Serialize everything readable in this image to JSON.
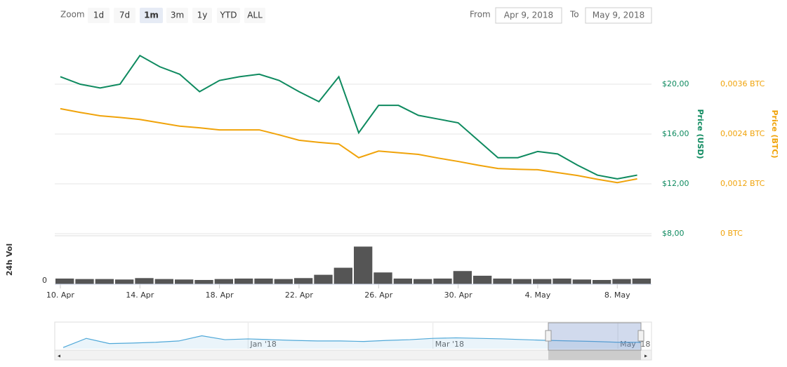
{
  "toolbar": {
    "zoom_label": "Zoom",
    "buttons": [
      "1d",
      "7d",
      "1m",
      "3m",
      "1y",
      "YTD",
      "ALL"
    ],
    "active": 2,
    "from_label": "From",
    "from": "Apr 9, 2018",
    "to_label": "To",
    "to": "May 9, 2018"
  },
  "chart_data": [
    {
      "type": "line",
      "categories": [
        "10. Apr",
        null,
        null,
        null,
        "14. Apr",
        null,
        null,
        null,
        "18. Apr",
        null,
        null,
        null,
        "22. Apr",
        null,
        null,
        null,
        "26. Apr",
        null,
        null,
        null,
        "30. Apr",
        null,
        null,
        null,
        "4. May",
        null,
        null,
        null,
        "8. May",
        null
      ],
      "series": [
        {
          "name": "Price (USD)",
          "color": "#0e8a5f",
          "values": [
            20.6,
            20.0,
            19.7,
            20.0,
            22.3,
            21.4,
            20.8,
            19.4,
            20.3,
            20.6,
            20.8,
            20.3,
            19.4,
            18.6,
            20.6,
            16.1,
            18.3,
            18.3,
            17.5,
            17.2,
            16.9,
            15.5,
            14.1,
            14.1,
            14.6,
            14.4,
            13.5,
            12.7,
            12.4,
            12.7
          ]
        },
        {
          "name": "Price (BTC)",
          "color": "#f0a30a",
          "axis": "y2",
          "values": [
            0.00301,
            0.00292,
            0.00284,
            0.0028,
            0.00275,
            0.00267,
            0.00259,
            0.00255,
            0.0025,
            0.0025,
            0.0025,
            0.00238,
            0.00225,
            0.0022,
            0.00216,
            0.00183,
            0.00199,
            0.00195,
            0.00191,
            0.00182,
            0.00174,
            0.00165,
            0.00157,
            0.00155,
            0.00154,
            0.00147,
            0.0014,
            0.00131,
            0.00123,
            0.00132
          ]
        }
      ],
      "ylim": [
        8,
        24
      ],
      "yticks": [
        {
          "value": 8,
          "label": "$8,00"
        },
        {
          "value": 12,
          "label": "$12,00"
        },
        {
          "value": 16,
          "label": "$16,00"
        },
        {
          "value": 20,
          "label": "$20,00"
        }
      ],
      "y2lim": [
        0,
        0.0048
      ],
      "y2ticks": [
        {
          "value": 0,
          "label": "0 BTC"
        },
        {
          "value": 0.0012,
          "label": "0,0012 BTC"
        },
        {
          "value": 0.0024,
          "label": "0,0024 BTC"
        },
        {
          "value": 0.0036,
          "label": "0,0036 BTC"
        }
      ],
      "grid": true
    },
    {
      "type": "bar",
      "y_label": "24h Vol",
      "color": "#555555",
      "values": [
        12,
        11,
        11,
        10,
        13,
        11,
        10,
        9,
        11,
        12,
        12,
        11,
        13,
        20,
        35,
        80,
        25,
        12,
        11,
        12,
        28,
        18,
        12,
        11,
        11,
        12,
        10,
        9,
        11,
        12
      ],
      "ylim": [
        0,
        100
      ],
      "yticks": [
        0
      ]
    },
    {
      "type": "area",
      "color": "#4fa8d8",
      "categories": [
        null,
        null,
        null,
        null,
        null,
        null,
        null,
        null,
        "Jan '18",
        null,
        null,
        null,
        null,
        null,
        null,
        null,
        "Mar '18",
        null,
        null,
        null,
        null,
        null,
        null,
        null,
        "May '18",
        null
      ],
      "values": [
        5,
        40,
        20,
        22,
        25,
        30,
        50,
        35,
        38,
        35,
        32,
        30,
        30,
        28,
        32,
        35,
        40,
        42,
        40,
        38,
        35,
        32,
        30,
        28,
        25,
        25
      ],
      "ylim": [
        0,
        100
      ]
    }
  ]
}
